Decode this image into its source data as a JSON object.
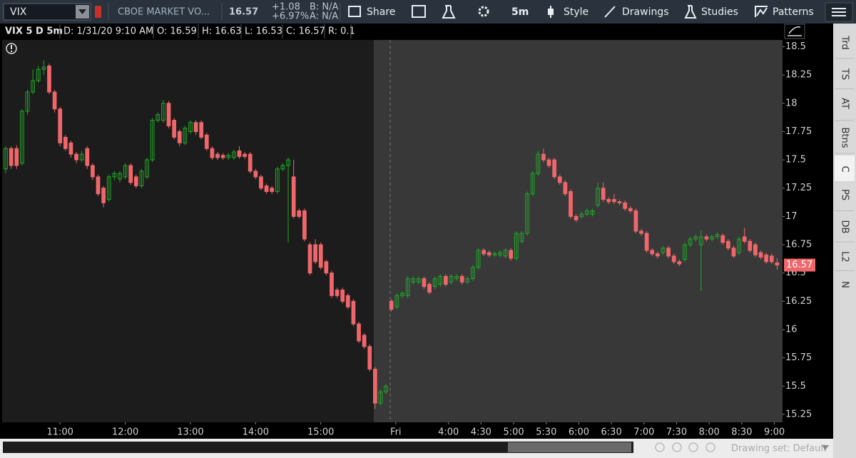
{
  "toolbar": {
    "symbol": "VIX",
    "description": "CBOE MARKET VO...",
    "last": "16.57",
    "change": "+1.08",
    "change_pct": "+6.97%",
    "bid": "B: N/A",
    "ask": "A: N/A",
    "buttons": [
      "Share",
      "5m",
      "Style",
      "Drawings",
      "Studies",
      "Patterns"
    ]
  },
  "header": {
    "title": "VIX 5 D 5m",
    "fields": [
      "D: 1/31/20 9:10 AM",
      "O: 16.59",
      "H: 16.63",
      "L: 16.53",
      "C: 16.57",
      "R: 0.1"
    ]
  },
  "sidebar": [
    "Trd",
    "TS",
    "AT",
    "Btns",
    "C",
    "PS",
    "DB",
    "L2",
    "N"
  ],
  "footer": {
    "drawing_set": "Drawing set: Default"
  },
  "chart_data": {
    "type": "candlestick",
    "up_color": "#22a52a",
    "down_color": "#f0676b",
    "xlim": [
      -0.4,
      143
    ],
    "ylim": [
      15.18,
      18.56
    ],
    "xticks": [
      {
        "value": 10,
        "label": "11:00"
      },
      {
        "value": 22,
        "label": "12:00"
      },
      {
        "value": 34,
        "label": "13:00"
      },
      {
        "value": 46,
        "label": "14:00"
      },
      {
        "value": 58,
        "label": "15:00"
      },
      {
        "value": 71.8,
        "label": "Fri"
      },
      {
        "value": 81.5,
        "label": "4:00"
      },
      {
        "value": 87.5,
        "label": "4:30"
      },
      {
        "value": 93.5,
        "label": "5:00"
      },
      {
        "value": 99.5,
        "label": "5:30"
      },
      {
        "value": 105.5,
        "label": "6:00"
      },
      {
        "value": 111.5,
        "label": "6:30"
      },
      {
        "value": 117.5,
        "label": "7:00"
      },
      {
        "value": 123.5,
        "label": "7:30"
      },
      {
        "value": 129.5,
        "label": "8:00"
      },
      {
        "value": 135.5,
        "label": "8:30"
      },
      {
        "value": 141.5,
        "label": "9:00"
      }
    ],
    "yticks": [
      15.25,
      15.5,
      15.75,
      16,
      16.25,
      16.5,
      16.75,
      17,
      17.25,
      17.5,
      17.75,
      18,
      18.25,
      18.5
    ],
    "open": [
      17.42,
      17.6,
      17.6,
      17.47,
      17.93,
      18.1,
      18.2,
      18.3,
      18.33,
      18.1,
      17.95,
      17.7,
      17.65,
      17.55,
      17.5,
      17.6,
      17.45,
      17.35,
      17.25,
      17.15,
      17.35,
      17.33,
      17.35,
      17.45,
      17.35,
      17.27,
      17.35,
      17.5,
      17.85,
      17.85,
      18.0,
      17.85,
      17.75,
      17.65,
      17.75,
      17.83,
      17.83,
      17.72,
      17.6,
      17.55,
      17.54,
      17.52,
      17.52,
      17.58,
      17.55,
      17.55,
      17.4,
      17.35,
      17.27,
      17.25,
      17.22,
      17.42,
      17.45,
      17.35,
      17.05,
      17.05,
      16.75,
      16.75,
      16.75,
      16.6,
      16.5,
      16.35,
      16.35,
      16.3,
      16.25,
      16.05,
      15.95,
      15.85,
      15.65,
      15.35,
      15.45,
      16.25,
      16.2,
      16.3,
      16.3,
      16.42,
      16.42,
      16.45,
      16.4,
      16.38,
      16.4,
      16.47,
      16.42,
      16.45,
      16.47,
      16.42,
      16.45,
      16.55,
      16.7,
      16.68,
      16.66,
      16.66,
      16.65,
      16.7,
      16.63,
      16.78,
      16.85,
      17.2,
      17.38,
      17.55,
      17.5,
      17.5,
      17.35,
      17.3,
      17.22,
      17.0,
      17.0,
      17.02,
      17.02,
      17.1,
      17.25,
      17.15,
      17.15,
      17.13,
      17.12,
      17.07,
      17.05,
      16.87,
      16.85,
      16.7,
      16.67,
      16.68,
      16.72,
      16.65,
      16.6,
      16.62,
      16.75,
      16.8,
      16.75,
      16.82,
      16.8,
      16.82,
      16.83,
      16.78,
      16.72,
      16.68,
      16.82,
      16.78,
      16.75,
      16.68,
      16.66,
      16.65,
      16.59
    ],
    "high": [
      17.62,
      17.62,
      17.63,
      17.95,
      18.12,
      18.3,
      18.33,
      18.38,
      18.35,
      18.12,
      17.97,
      17.72,
      17.67,
      17.57,
      17.58,
      17.62,
      17.47,
      17.37,
      17.27,
      17.37,
      17.4,
      17.4,
      17.47,
      17.47,
      17.37,
      17.42,
      17.52,
      17.87,
      17.92,
      18.03,
      18.02,
      17.87,
      17.77,
      17.8,
      17.85,
      17.85,
      17.85,
      17.74,
      17.62,
      17.57,
      17.56,
      17.56,
      17.59,
      17.62,
      17.57,
      17.57,
      17.42,
      17.37,
      17.29,
      17.27,
      17.44,
      17.47,
      17.52,
      17.5,
      17.07,
      17.07,
      16.77,
      16.8,
      16.77,
      16.62,
      16.52,
      16.37,
      16.37,
      16.32,
      16.27,
      16.07,
      15.97,
      15.87,
      15.67,
      15.47,
      15.52,
      16.27,
      16.32,
      16.34,
      16.47,
      16.47,
      16.47,
      16.47,
      16.42,
      16.47,
      16.49,
      16.49,
      16.49,
      16.49,
      16.49,
      16.47,
      16.57,
      16.72,
      16.72,
      16.7,
      16.69,
      16.7,
      16.72,
      16.72,
      16.87,
      16.87,
      17.22,
      17.4,
      17.58,
      17.6,
      17.52,
      17.52,
      17.37,
      17.32,
      17.24,
      17.02,
      17.04,
      17.07,
      17.07,
      17.3,
      17.3,
      17.17,
      17.2,
      17.15,
      17.14,
      17.09,
      17.07,
      16.89,
      16.87,
      16.72,
      16.69,
      16.74,
      16.74,
      16.67,
      16.62,
      16.77,
      16.82,
      16.84,
      16.88,
      16.84,
      16.84,
      16.86,
      16.85,
      16.8,
      16.74,
      16.82,
      16.9,
      16.8,
      16.77,
      16.7,
      16.68,
      16.67,
      16.63
    ],
    "low": [
      17.38,
      17.42,
      17.42,
      17.45,
      17.9,
      18.08,
      18.18,
      18.25,
      18.08,
      17.92,
      17.62,
      17.58,
      17.52,
      17.47,
      17.48,
      17.42,
      17.32,
      17.18,
      17.08,
      17.13,
      17.32,
      17.3,
      17.33,
      17.28,
      17.25,
      17.25,
      17.33,
      17.48,
      17.83,
      17.83,
      17.78,
      17.68,
      17.62,
      17.63,
      17.73,
      17.72,
      17.68,
      17.58,
      17.5,
      17.5,
      17.5,
      17.5,
      17.5,
      17.51,
      17.51,
      17.38,
      17.33,
      17.23,
      17.2,
      17.2,
      17.2,
      17.4,
      16.77,
      16.98,
      16.98,
      16.78,
      16.48,
      16.58,
      16.53,
      16.48,
      16.28,
      16.28,
      16.23,
      16.18,
      16.03,
      15.88,
      15.83,
      15.63,
      15.3,
      15.33,
      15.43,
      16.16,
      16.18,
      16.28,
      16.28,
      16.4,
      16.4,
      16.36,
      16.31,
      16.36,
      16.38,
      16.38,
      16.4,
      16.43,
      16.4,
      16.4,
      16.43,
      16.53,
      16.65,
      16.64,
      16.64,
      16.64,
      16.63,
      16.61,
      16.61,
      16.76,
      16.83,
      17.18,
      17.36,
      17.48,
      17.43,
      17.33,
      17.28,
      17.18,
      16.98,
      16.95,
      16.98,
      17.0,
      17.0,
      17.08,
      17.13,
      17.11,
      17.11,
      17.1,
      17.05,
      17.03,
      16.85,
      16.83,
      16.68,
      16.65,
      16.63,
      16.66,
      16.63,
      16.58,
      16.56,
      16.6,
      16.73,
      16.78,
      16.34,
      16.78,
      16.78,
      16.8,
      16.75,
      16.7,
      16.63,
      16.66,
      16.76,
      16.68,
      16.64,
      16.62,
      16.58,
      16.58,
      16.53
    ],
    "close": [
      17.6,
      17.45,
      17.45,
      17.93,
      18.1,
      18.2,
      18.3,
      18.32,
      18.1,
      17.95,
      17.65,
      17.6,
      17.55,
      17.5,
      17.55,
      17.45,
      17.35,
      17.2,
      17.12,
      17.35,
      17.38,
      17.38,
      17.45,
      17.3,
      17.27,
      17.4,
      17.5,
      17.85,
      17.9,
      18.0,
      17.8,
      17.7,
      17.65,
      17.78,
      17.83,
      17.75,
      17.7,
      17.6,
      17.52,
      17.52,
      17.52,
      17.54,
      17.57,
      17.53,
      17.53,
      17.4,
      17.35,
      17.25,
      17.22,
      17.22,
      17.42,
      17.45,
      17.5,
      17.0,
      17.0,
      16.8,
      16.5,
      16.6,
      16.55,
      16.5,
      16.3,
      16.3,
      16.25,
      16.2,
      16.05,
      15.9,
      15.85,
      15.65,
      15.35,
      15.45,
      15.5,
      16.18,
      16.3,
      16.32,
      16.45,
      16.45,
      16.45,
      16.38,
      16.33,
      16.45,
      16.47,
      16.4,
      16.47,
      16.47,
      16.42,
      16.45,
      16.55,
      16.7,
      16.67,
      16.66,
      16.67,
      16.68,
      16.7,
      16.63,
      16.85,
      16.85,
      17.2,
      17.38,
      17.55,
      17.5,
      17.45,
      17.35,
      17.3,
      17.2,
      17.0,
      16.97,
      17.02,
      17.05,
      17.05,
      17.25,
      17.15,
      17.13,
      17.13,
      17.12,
      17.07,
      17.05,
      16.87,
      16.85,
      16.7,
      16.67,
      16.65,
      16.72,
      16.65,
      16.6,
      16.58,
      16.75,
      16.8,
      16.82,
      16.82,
      16.8,
      16.82,
      16.84,
      16.77,
      16.72,
      16.65,
      16.8,
      16.78,
      16.7,
      16.66,
      16.64,
      16.6,
      16.6,
      16.57
    ]
  }
}
